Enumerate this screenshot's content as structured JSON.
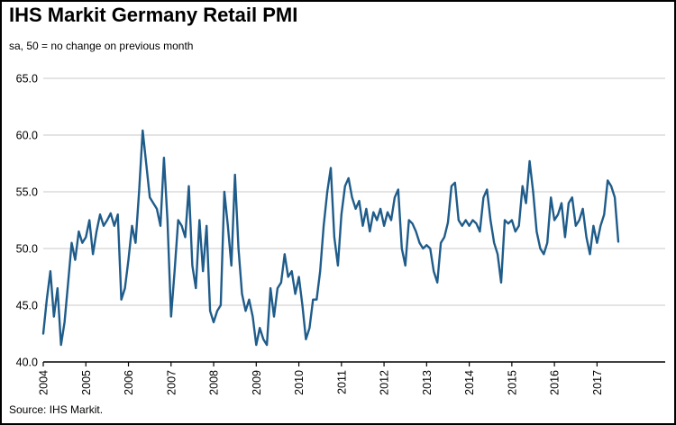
{
  "header": {
    "title": "IHS Markit Germany Retail PMI",
    "subtitle": "sa, 50 = no change on previous month"
  },
  "footer": {
    "source": "Source: IHS Markit."
  },
  "chart_data": {
    "type": "line",
    "title": "IHS Markit Germany Retail PMI",
    "subtitle": "sa, 50 = no change on previous month",
    "frequency": "monthly",
    "start_year": 2004,
    "values": [
      42.5,
      45.5,
      48.0,
      44.0,
      46.5,
      41.5,
      43.5,
      47.0,
      50.5,
      49.0,
      51.5,
      50.5,
      51.0,
      52.5,
      49.5,
      51.5,
      53.0,
      52.0,
      52.5,
      53.1,
      52.0,
      53.0,
      45.5,
      46.5,
      49.0,
      52.0,
      50.5,
      55.0,
      60.4,
      57.5,
      54.5,
      54.0,
      53.5,
      52.0,
      58.0,
      52.5,
      44.0,
      48.0,
      52.5,
      52.0,
      51.0,
      55.5,
      48.5,
      46.5,
      52.5,
      48.0,
      52.0,
      44.5,
      43.5,
      44.5,
      45.0,
      55.0,
      52.0,
      48.5,
      56.5,
      50.0,
      46.0,
      44.5,
      45.5,
      44.0,
      41.5,
      43.0,
      42.0,
      41.5,
      46.5,
      44.0,
      46.5,
      47.0,
      49.5,
      47.5,
      48.0,
      46.0,
      47.5,
      45.0,
      42.0,
      43.0,
      45.5,
      45.5,
      48.0,
      52.0,
      55.0,
      57.1,
      51.0,
      48.5,
      53.0,
      55.5,
      56.2,
      54.5,
      53.5,
      54.2,
      52.0,
      53.5,
      51.5,
      53.2,
      52.5,
      53.5,
      52.0,
      53.2,
      52.5,
      54.5,
      55.2,
      50.0,
      48.5,
      52.5,
      52.2,
      51.5,
      50.5,
      50.0,
      50.3,
      50.0,
      48.0,
      47.0,
      50.5,
      51.0,
      52.3,
      55.5,
      55.8,
      52.5,
      52.0,
      52.5,
      52.0,
      52.5,
      52.2,
      51.5,
      54.5,
      55.2,
      52.5,
      50.5,
      49.5,
      47.0,
      52.5,
      52.2,
      52.5,
      51.5,
      52.0,
      55.5,
      54.0,
      57.7,
      55.0,
      51.5,
      50.0,
      49.5,
      50.5,
      54.5,
      52.5,
      53.0,
      54.0,
      51.0,
      54.0,
      54.5,
      52.0,
      52.5,
      53.5,
      51.0,
      49.5,
      52.0,
      50.5,
      52.0,
      53.0,
      56.0,
      55.5,
      54.5,
      50.6
    ],
    "ylim": [
      40,
      65
    ],
    "yticks": [
      40,
      45,
      50,
      55,
      60,
      65
    ],
    "ytick_labels": [
      "40.0",
      "45.0",
      "50.0",
      "55.0",
      "60.0",
      "65.0"
    ],
    "xtick_years": [
      2004,
      2005,
      2006,
      2007,
      2008,
      2009,
      2010,
      2011,
      2012,
      2013,
      2014,
      2015,
      2016,
      2017
    ],
    "x_domain": [
      2004,
      2018.6
    ],
    "grid": true,
    "legend": "none",
    "line_color": "#1f5c8a",
    "grid_color": "#c8c8c8",
    "axis_color": "#000000"
  }
}
